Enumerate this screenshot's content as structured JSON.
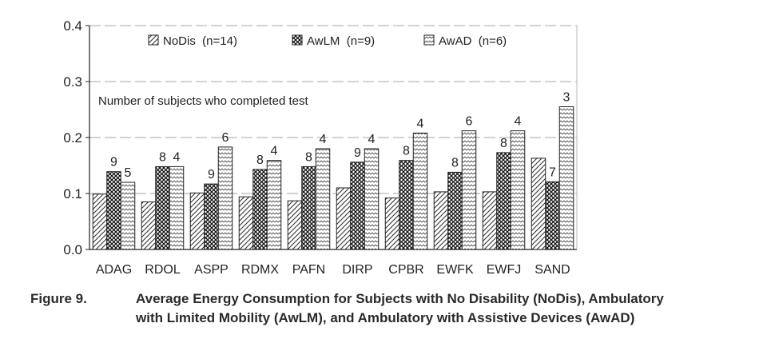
{
  "chart_data": {
    "type": "bar",
    "categories": [
      "ADAG",
      "RDOL",
      "ASPP",
      "RDMX",
      "PAFN",
      "DIRP",
      "CPBR",
      "EWFK",
      "EWFJ",
      "SAND"
    ],
    "series": [
      {
        "name": "NoDis  (n=14)",
        "values": [
          0.099,
          0.085,
          0.101,
          0.094,
          0.087,
          0.11,
          0.092,
          0.103,
          0.103,
          0.163
        ],
        "labels": [
          "",
          "",
          "",
          "",
          "",
          "",
          "",
          "",
          "",
          ""
        ]
      },
      {
        "name": "AwLM  (n=9)",
        "values": [
          0.139,
          0.148,
          0.117,
          0.143,
          0.148,
          0.156,
          0.159,
          0.138,
          0.173,
          0.121
        ],
        "labels": [
          "9",
          "8",
          "9",
          "8",
          "8",
          "9",
          "8",
          "8",
          "8",
          "7"
        ]
      },
      {
        "name": "AwAD  (n=6)",
        "values": [
          0.12,
          0.148,
          0.183,
          0.159,
          0.18,
          0.18,
          0.208,
          0.212,
          0.212,
          0.255
        ],
        "labels": [
          "5",
          "4",
          "6",
          "4",
          "4",
          "4",
          "4",
          "6",
          "4",
          "3"
        ]
      }
    ],
    "ylim": [
      0,
      0.4
    ],
    "yticks": [
      "0.0",
      "0.1",
      "0.2",
      "0.3",
      "0.4"
    ],
    "annotation": "Number of subjects who completed test",
    "legend_position": "top",
    "grid": true
  },
  "caption": {
    "figure_label": "Figure 9.",
    "line1": "Average Energy Consumption for Subjects with No Disability (NoDis), Ambulatory",
    "line2": "with Limited Mobility (AwLM), and Ambulatory with Assistive Devices (AwAD)"
  }
}
